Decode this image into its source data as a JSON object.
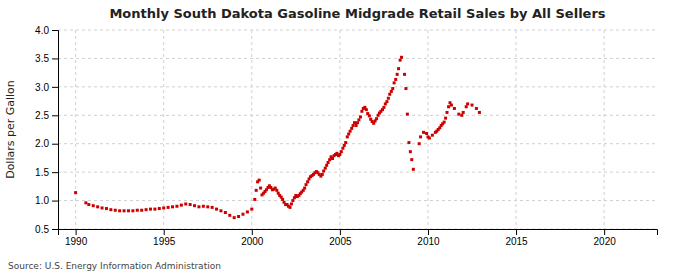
{
  "chart_data": {
    "type": "scatter",
    "title": "Monthly South Dakota Gasoline Midgrade Retail Sales by All Sellers",
    "ylabel": "Dollars per Gallon",
    "source": "Source: U.S. Energy Information Administration",
    "color": "#cc0000",
    "marker": "square",
    "grid": true,
    "xlim": [
      1989,
      2023
    ],
    "xticks": [
      1990,
      1995,
      2000,
      2005,
      2010,
      2015,
      2020
    ],
    "ylim": [
      0.5,
      4.0
    ],
    "yticks": [
      0.5,
      {
        "value": 1.0,
        "label": "1.0"
      },
      1.5,
      {
        "value": 2.0,
        "label": "2.0"
      },
      2.5,
      {
        "value": 3.0,
        "label": "3.0"
      },
      3.5,
      {
        "value": 4.0,
        "label": "4.0"
      }
    ],
    "x": [
      1990.0,
      1990.583,
      1990.75,
      1991.0,
      1991.25,
      1991.5,
      1991.75,
      1992.0,
      1992.25,
      1992.5,
      1992.75,
      1993.0,
      1993.25,
      1993.5,
      1993.75,
      1994.0,
      1994.25,
      1994.5,
      1994.75,
      1995.0,
      1995.25,
      1995.5,
      1995.75,
      1996.0,
      1996.25,
      1996.5,
      1996.75,
      1997.0,
      1997.25,
      1997.5,
      1997.75,
      1998.0,
      1998.25,
      1998.5,
      1998.75,
      1999.0,
      1999.25,
      1999.5,
      1999.75,
      2000.0,
      2000.17,
      2000.25,
      2000.33,
      2000.42,
      2000.5,
      2000.58,
      2000.67,
      2000.75,
      2000.83,
      2000.92,
      2001.0,
      2001.08,
      2001.17,
      2001.25,
      2001.33,
      2001.42,
      2001.5,
      2001.58,
      2001.67,
      2001.75,
      2001.83,
      2001.92,
      2002.0,
      2002.08,
      2002.17,
      2002.25,
      2002.33,
      2002.42,
      2002.5,
      2002.58,
      2002.67,
      2002.75,
      2002.83,
      2002.92,
      2003.0,
      2003.08,
      2003.17,
      2003.25,
      2003.33,
      2003.42,
      2003.5,
      2003.58,
      2003.67,
      2003.75,
      2003.83,
      2003.92,
      2004.0,
      2004.08,
      2004.17,
      2004.25,
      2004.33,
      2004.42,
      2004.5,
      2004.58,
      2004.67,
      2004.75,
      2004.83,
      2004.92,
      2005.0,
      2005.08,
      2005.17,
      2005.25,
      2005.33,
      2005.42,
      2005.5,
      2005.58,
      2005.67,
      2005.75,
      2005.83,
      2005.92,
      2006.0,
      2006.08,
      2006.17,
      2006.25,
      2006.33,
      2006.42,
      2006.5,
      2006.58,
      2006.67,
      2006.75,
      2006.83,
      2006.92,
      2007.0,
      2007.08,
      2007.17,
      2007.25,
      2007.33,
      2007.42,
      2007.5,
      2007.58,
      2007.67,
      2007.75,
      2007.83,
      2007.92,
      2008.0,
      2008.08,
      2008.17,
      2008.25,
      2008.33,
      2008.42,
      2008.5,
      2008.67,
      2008.75,
      2008.83,
      2008.92,
      2009.0,
      2009.08,
      2009.17,
      2009.5,
      2009.58,
      2009.75,
      2009.92,
      2010.0,
      2010.08,
      2010.25,
      2010.42,
      2010.5,
      2010.58,
      2010.67,
      2010.75,
      2010.83,
      2010.92,
      2011.0,
      2011.08,
      2011.17,
      2011.25,
      2011.33,
      2011.5,
      2011.75,
      2011.92,
      2012.0,
      2012.17,
      2012.25,
      2012.5,
      2012.75,
      2012.92
    ],
    "values": [
      1.14,
      0.96,
      0.93,
      0.91,
      0.89,
      0.87,
      0.86,
      0.84,
      0.83,
      0.82,
      0.82,
      0.82,
      0.82,
      0.83,
      0.83,
      0.84,
      0.85,
      0.85,
      0.86,
      0.87,
      0.88,
      0.89,
      0.9,
      0.92,
      0.94,
      0.93,
      0.91,
      0.89,
      0.9,
      0.89,
      0.88,
      0.85,
      0.82,
      0.79,
      0.74,
      0.7,
      0.72,
      0.76,
      0.8,
      0.85,
      1.02,
      1.18,
      1.33,
      1.36,
      1.22,
      1.1,
      1.13,
      1.16,
      1.19,
      1.23,
      1.26,
      1.23,
      1.19,
      1.2,
      1.22,
      1.18,
      1.13,
      1.09,
      1.06,
      1.02,
      0.97,
      0.93,
      0.93,
      0.9,
      0.88,
      0.94,
      1.0,
      1.05,
      1.09,
      1.07,
      1.09,
      1.12,
      1.15,
      1.18,
      1.22,
      1.28,
      1.33,
      1.38,
      1.42,
      1.44,
      1.46,
      1.49,
      1.51,
      1.49,
      1.46,
      1.43,
      1.46,
      1.52,
      1.57,
      1.62,
      1.67,
      1.72,
      1.77,
      1.74,
      1.79,
      1.81,
      1.83,
      1.79,
      1.81,
      1.86,
      1.92,
      1.97,
      2.02,
      2.12,
      2.17,
      2.22,
      2.27,
      2.32,
      2.37,
      2.32,
      2.37,
      2.42,
      2.47,
      2.57,
      2.62,
      2.64,
      2.6,
      2.53,
      2.49,
      2.43,
      2.39,
      2.36,
      2.4,
      2.44,
      2.5,
      2.54,
      2.57,
      2.6,
      2.64,
      2.7,
      2.74,
      2.8,
      2.87,
      2.92,
      2.97,
      3.07,
      3.13,
      3.22,
      3.32,
      3.47,
      3.52,
      3.22,
      2.97,
      2.52,
      2.02,
      1.86,
      1.72,
      1.55,
      2.0,
      2.12,
      2.2,
      2.18,
      2.12,
      2.1,
      2.15,
      2.2,
      2.22,
      2.25,
      2.28,
      2.32,
      2.35,
      2.38,
      2.45,
      2.55,
      2.65,
      2.72,
      2.68,
      2.62,
      2.52,
      2.5,
      2.55,
      2.65,
      2.7,
      2.68,
      2.62,
      2.55
    ]
  }
}
